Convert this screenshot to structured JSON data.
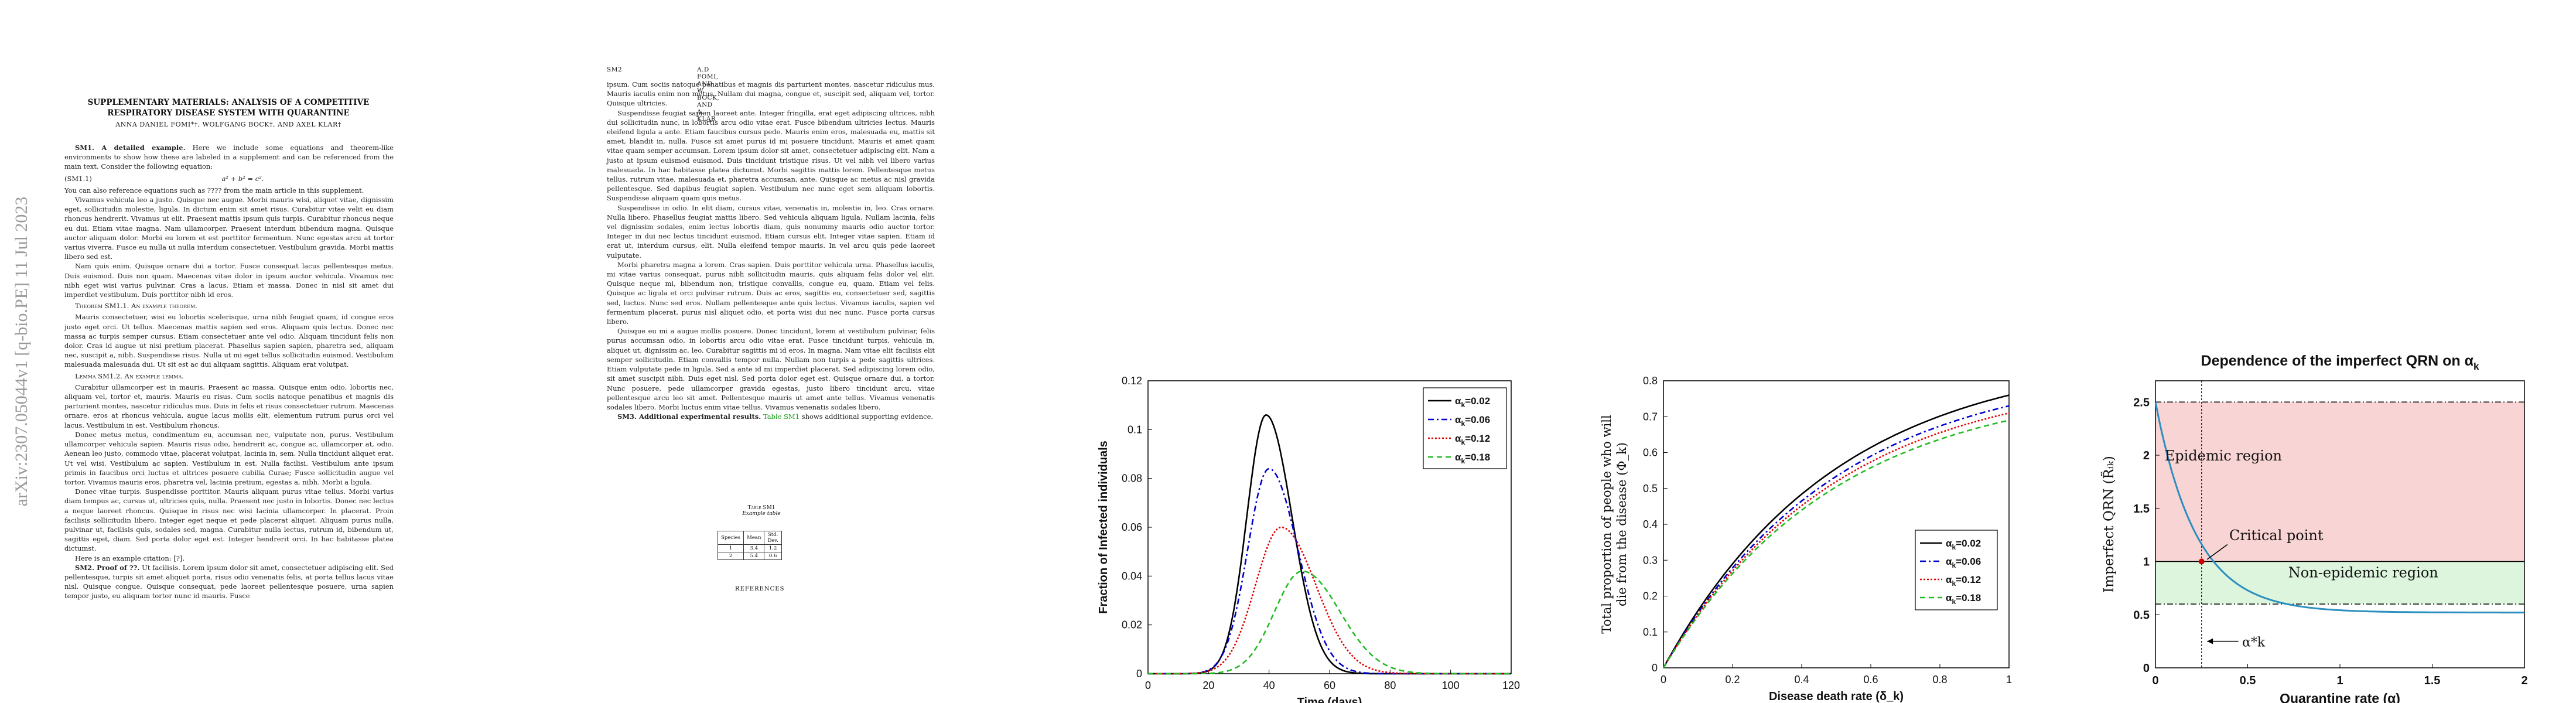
{
  "arxiv_stamp": "arXiv:2307.05044v1  [q-bio.PE]  11 Jul 2023",
  "page1": {
    "title_line1": "SUPPLEMENTARY MATERIALS: ANALYSIS OF A COMPETITIVE",
    "title_line2": "RESPIRATORY DISEASE SYSTEM WITH QUARANTINE",
    "authors": "ANNA DANIEL FOMI*†, WOLFGANG BOCK†, AND AXEL KLAR†",
    "sec1_head": "SM1. A detailed example.",
    "sec1_text": "Here we include some equations and theorem-like environments to show how these are labeled in a supplement and can be referenced from the main text. Consider the following equation:",
    "eq_num": "(SM1.1)",
    "eq": "a² + b² = c².",
    "ref_text": "You can also reference equations such as ???? from the main article in this supplement.",
    "lorem1": "Vivamus vehicula leo a justo. Quisque nec augue. Morbi mauris wisi, aliquet vitae, dignissim eget, sollicitudin molestie, ligula. In dictum enim sit amet risus. Curabitur vitae velit eu diam rhoncus hendrerit. Vivamus ut elit. Praesent mattis ipsum quis turpis. Curabitur rhoncus neque eu dui. Etiam vitae magna. Nam ullamcorper. Praesent interdum bibendum magna. Quisque auctor aliquam dolor. Morbi eu lorem et est porttitor fermentum. Nunc egestas arcu at tortor varius viverra. Fusce eu nulla ut nulla interdum consectetuer. Vestibulum gravida. Morbi mattis libero sed est.",
    "lorem2": "Nam quis enim. Quisque ornare dui a tortor. Fusce consequat lacus pellentesque metus. Duis euismod. Duis non quam. Maecenas vitae dolor in ipsum auctor vehicula. Vivamus nec nibh eget wisi varius pulvinar. Cras a lacus. Etiam et massa. Donec in nisl sit amet dui imperdiet vestibulum. Duis porttitor nibh id eros.",
    "theorem": "Theorem SM1.1. An example theorem.",
    "lorem3": "Mauris consectetuer, wisi eu lobortis scelerisque, urna nibh feugiat quam, id congue eros justo eget orci. Ut tellus. Maecenas mattis sapien sed eros. Aliquam quis lectus. Donec nec massa ac turpis semper cursus. Etiam consectetuer ante vel odio. Aliquam tincidunt felis non dolor. Cras id augue ut nisi pretium placerat. Phasellus sapien sapien, pharetra sed, aliquam nec, suscipit a, nibh. Suspendisse risus. Nulla ut mi eget tellus sollicitudin euismod. Vestibulum malesuada malesuada dui. Ut sit est ac dui aliquam sagittis. Aliquam erat volutpat.",
    "lemma": "Lemma SM1.2. An example lemma.",
    "lorem4": "Curabitur ullamcorper est in mauris. Praesent ac massa. Quisque enim odio, lobortis nec, aliquam vel, tortor et, mauris. Mauris eu risus. Cum sociis natoque penatibus et magnis dis parturient montes, nascetur ridiculus mus. Duis in felis et risus consectetuer rutrum. Maecenas ornare, eros at rhoncus vehicula, augue lacus mollis elit, elementum rutrum purus orci vel lacus. Vestibulum in est. Vestibulum rhoncus.",
    "lorem5": "Donec metus metus, condimentum eu, accumsan nec, vulputate non, purus. Vestibulum ullamcorper vehicula sapien. Mauris risus odio, hendrerit ac, congue ac, ullamcorper at, odio. Aenean leo justo, commodo vitae, placerat volutpat, lacinia in, sem. Nulla tincidunt aliquet erat. Ut vel wisi. Vestibulum ac sapien. Vestibulum in est. Nulla facilisi. Vestibulum ante ipsum primis in faucibus orci luctus et ultrices posuere cubilia Curae; Fusce sollicitudin augue vel tortor. Vivamus mauris eros, pharetra vel, lacinia pretium, egestas a, nibh. Morbi a ligula.",
    "lorem6": "Donec vitae turpis. Suspendisse porttitor. Mauris aliquam purus vitae tellus. Morbi varius diam tempus ac, cursus ut, ultricies quis, nulla. Praesent nec justo in lobortis. Donec nec lectus a neque laoreet rhoncus. Quisque in risus nec wisi lacinia ullamcorper. In placerat. Proin facilisis sollicitudin libero. Integer eget neque et pede placerat aliquet. Aliquam purus nulla, pulvinar ut, facilisis quis, sodales sed, magna. Curabitur nulla lectus, rutrum id, bibendum ut, sagittis eget, diam. Sed porta dolor eget est. Integer hendrerit orci. In hac habitasse platea dictumst.",
    "cite": "Here is an example citation: [?].",
    "sec2_head": "SM2. Proof of ??.",
    "sec2_text": "Ut facilisis. Lorem ipsum dolor sit amet, consectetuer adipiscing elit. Sed pellentesque, turpis sit amet aliquet porta, risus odio venenatis felis, at porta tellus lacus vitae nisl. Quisque congue. Quisque consequat, pede laoreet pellentesque posuere, urna sapien tempor justo, eu aliquam tortor nunc id mauris. Fusce"
  },
  "page2": {
    "page_label": "SM2",
    "running_head": "A.D FOMI, AND W. BOCK, AND A. KLAR",
    "lorem1": "ipsum. Cum sociis natoque penatibus et magnis dis parturient montes, nascetur ridiculus mus. Mauris iaculis enim non metus. Nullam dui magna, congue et, suscipit sed, aliquam vel, tortor. Quisque ultricies.",
    "lorem2": "Suspendisse feugiat sapien laoreet ante. Integer fringilla, erat eget adipiscing ultrices, nibh dui sollicitudin nunc, in lobortis arcu odio vitae erat. Fusce bibendum ultricies lectus. Mauris eleifend ligula a ante. Etiam faucibus cursus pede. Mauris enim eros, malesuada eu, mattis sit amet, blandit in, nulla. Fusce sit amet purus id mi posuere tincidunt. Mauris et amet quam vitae quam semper accumsan. Lorem ipsum dolor sit amet, consectetuer adipiscing elit. Nam a justo at ipsum euismod euismod. Duis tincidunt tristique risus. Ut vel nibh vel libero varius malesuada. In hac habitasse platea dictumst. Morbi sagittis mattis lorem. Pellentesque metus tellus, rutrum vitae, malesuada et, pharetra accumsan, ante. Quisque ac metus ac nisl gravida pellentesque. Sed dapibus feugiat sapien. Vestibulum nec nunc eget sem aliquam lobortis. Suspendisse aliquam quam quis metus.",
    "lorem3": "Suspendisse in odio. In elit diam, cursus vitae, venenatis in, molestie in, leo. Cras ornare. Nulla libero. Phasellus feugiat mattis libero. Sed vehicula aliquam ligula. Nullam lacinia, felis vel dignissim sodales, enim lectus lobortis diam, quis nonummy mauris odio auctor tortor. Integer in dui nec lectus tincidunt euismod. Etiam cursus elit. Integer vitae sapien. Etiam id erat ut, interdum cursus, elit. Nulla eleifend tempor mauris. In vel arcu quis pede laoreet vulputate.",
    "lorem4": "Morbi pharetra magna a lorem. Cras sapien. Duis porttitor vehicula urna. Phasellus iaculis, mi vitae varius consequat, purus nibh sollicitudin mauris, quis aliquam felis dolor vel elit. Quisque neque mi, bibendum non, tristique convallis, congue eu, quam. Etiam vel felis. Quisque ac ligula et orci pulvinar rutrum. Duis ac eros, sagittis eu, consectetuer sed, sagittis sed, luctus. Nunc sed eros. Nullam pellentesque ante quis lectus. Vivamus iaculis, sapien vel fermentum placerat, purus nisl aliquet odio, et porta wisi dui nec nunc. Fusce porta cursus libero.",
    "lorem5": "Quisque eu mi a augue mollis posuere. Donec tincidunt, lorem at vestibulum pulvinar, felis purus accumsan odio, in lobortis arcu odio vitae erat. Fusce tincidunt turpis, vehicula in, aliquet ut, dignissim ac, leo. Curabitur sagittis mi id eros. In magna. Nam vitae elit facilisis elit semper sollicitudin. Etiam convallis tempor nulla. Nullam non turpis a pede sagittis ultrices. Etiam vulputate pede in ligula. Sed a ante id mi imperdiet placerat. Sed adipiscing lorem odio, sit amet suscipit nibh. Duis eget nisl. Sed porta dolor eget est. Quisque ornare dui, a tortor. Nunc posuere, pede ullamcorper gravida egestas, justo libero tincidunt arcu, vitae pellentesque arcu leo sit amet. Pellentesque mauris ut amet ante tellus. Vivamus venenatis sodales libero. Morbi luctus enim vitae tellus. Vivamus venenatis sodales libero.",
    "sec3_head": "SM3. Additional experimental results.",
    "sec3_text_a": "Table SM1",
    "sec3_text_b": " shows additional supporting evidence.",
    "table_title": "Table SM1",
    "table_sub": "Example table",
    "table": {
      "headers": [
        "Species",
        "Mean",
        "Std. Dev."
      ],
      "rows": [
        [
          "1",
          "3.4",
          "1.2"
        ],
        [
          "2",
          "5.4",
          "0.6"
        ]
      ]
    },
    "references": "REFERENCES"
  },
  "colors": {
    "black_series": "#000000",
    "blue_series": "#0000cc",
    "red_series": "#e00000",
    "green_series": "#22bb22",
    "qrn_curve": "#2a8fbf",
    "epidemic_fill": "#f9d4d4",
    "nonepidemic_fill": "#dcf5dc"
  },
  "chart_data": [
    {
      "type": "line",
      "xlabel": "Time (days)",
      "ylabel": "Fraction of Infected individuals",
      "xlim": [
        0,
        120
      ],
      "ylim": [
        0,
        0.12
      ],
      "xticks": [
        "0",
        "20",
        "40",
        "60",
        "80",
        "100",
        "120"
      ],
      "yticks": [
        "0",
        "0.02",
        "0.04",
        "0.06",
        "0.08",
        "0.1",
        "0.12"
      ],
      "legend_position": "top-right",
      "series": [
        {
          "name": "α_k=0.02",
          "peak_x": 39,
          "peak_y": 0.106,
          "width": 9
        },
        {
          "name": "α_k=0.06",
          "peak_x": 40,
          "peak_y": 0.084,
          "width": 10
        },
        {
          "name": "α_k=0.12",
          "peak_x": 44,
          "peak_y": 0.06,
          "width": 12
        },
        {
          "name": "α_k=0.18",
          "peak_x": 51,
          "peak_y": 0.042,
          "width": 13
        }
      ]
    },
    {
      "type": "line",
      "xlabel": "Disease death rate (δ_k)",
      "ylabel": "Total proportion of people who will die from the disease (Φ_k)",
      "xlim": [
        0,
        1
      ],
      "ylim": [
        0,
        0.8
      ],
      "xticks": [
        "0",
        "0.2",
        "0.4",
        "0.6",
        "0.8",
        "1"
      ],
      "yticks": [
        "0",
        "0.1",
        "0.2",
        "0.3",
        "0.4",
        "0.5",
        "0.6",
        "0.7",
        "0.8"
      ],
      "legend_position": "center-right",
      "series": [
        {
          "name": "α_k=0.02",
          "end_y": 0.76
        },
        {
          "name": "α_k=0.06",
          "end_y": 0.73
        },
        {
          "name": "α_k=0.12",
          "end_y": 0.71
        },
        {
          "name": "α_k=0.18",
          "end_y": 0.69
        }
      ]
    },
    {
      "type": "line",
      "title": "Dependence of the imperfect QRN on α_k",
      "xlabel": "Quarantine rate (α_k)",
      "ylabel": "Imperfect QRN (R̃ᵢₖ)",
      "xlim": [
        0,
        2
      ],
      "ylim": [
        0,
        2.7
      ],
      "xticks": [
        "0",
        "0.5",
        "1",
        "1.5",
        "2"
      ],
      "yticks": [
        "0",
        "0.5",
        "1",
        "1.5",
        "2",
        "2.5"
      ],
      "upper_bound": 2.5,
      "lower_bound": 0.6,
      "threshold": 1,
      "critical_x": 0.25,
      "curve": {
        "r0": 2.5,
        "asymptote": 0.52,
        "decay": 4.5
      },
      "annotations": {
        "epidemic": "Epidemic region",
        "critical": "Critical point",
        "nonepidemic": "Non-epidemic region",
        "alpha_star": "α*k"
      }
    }
  ]
}
